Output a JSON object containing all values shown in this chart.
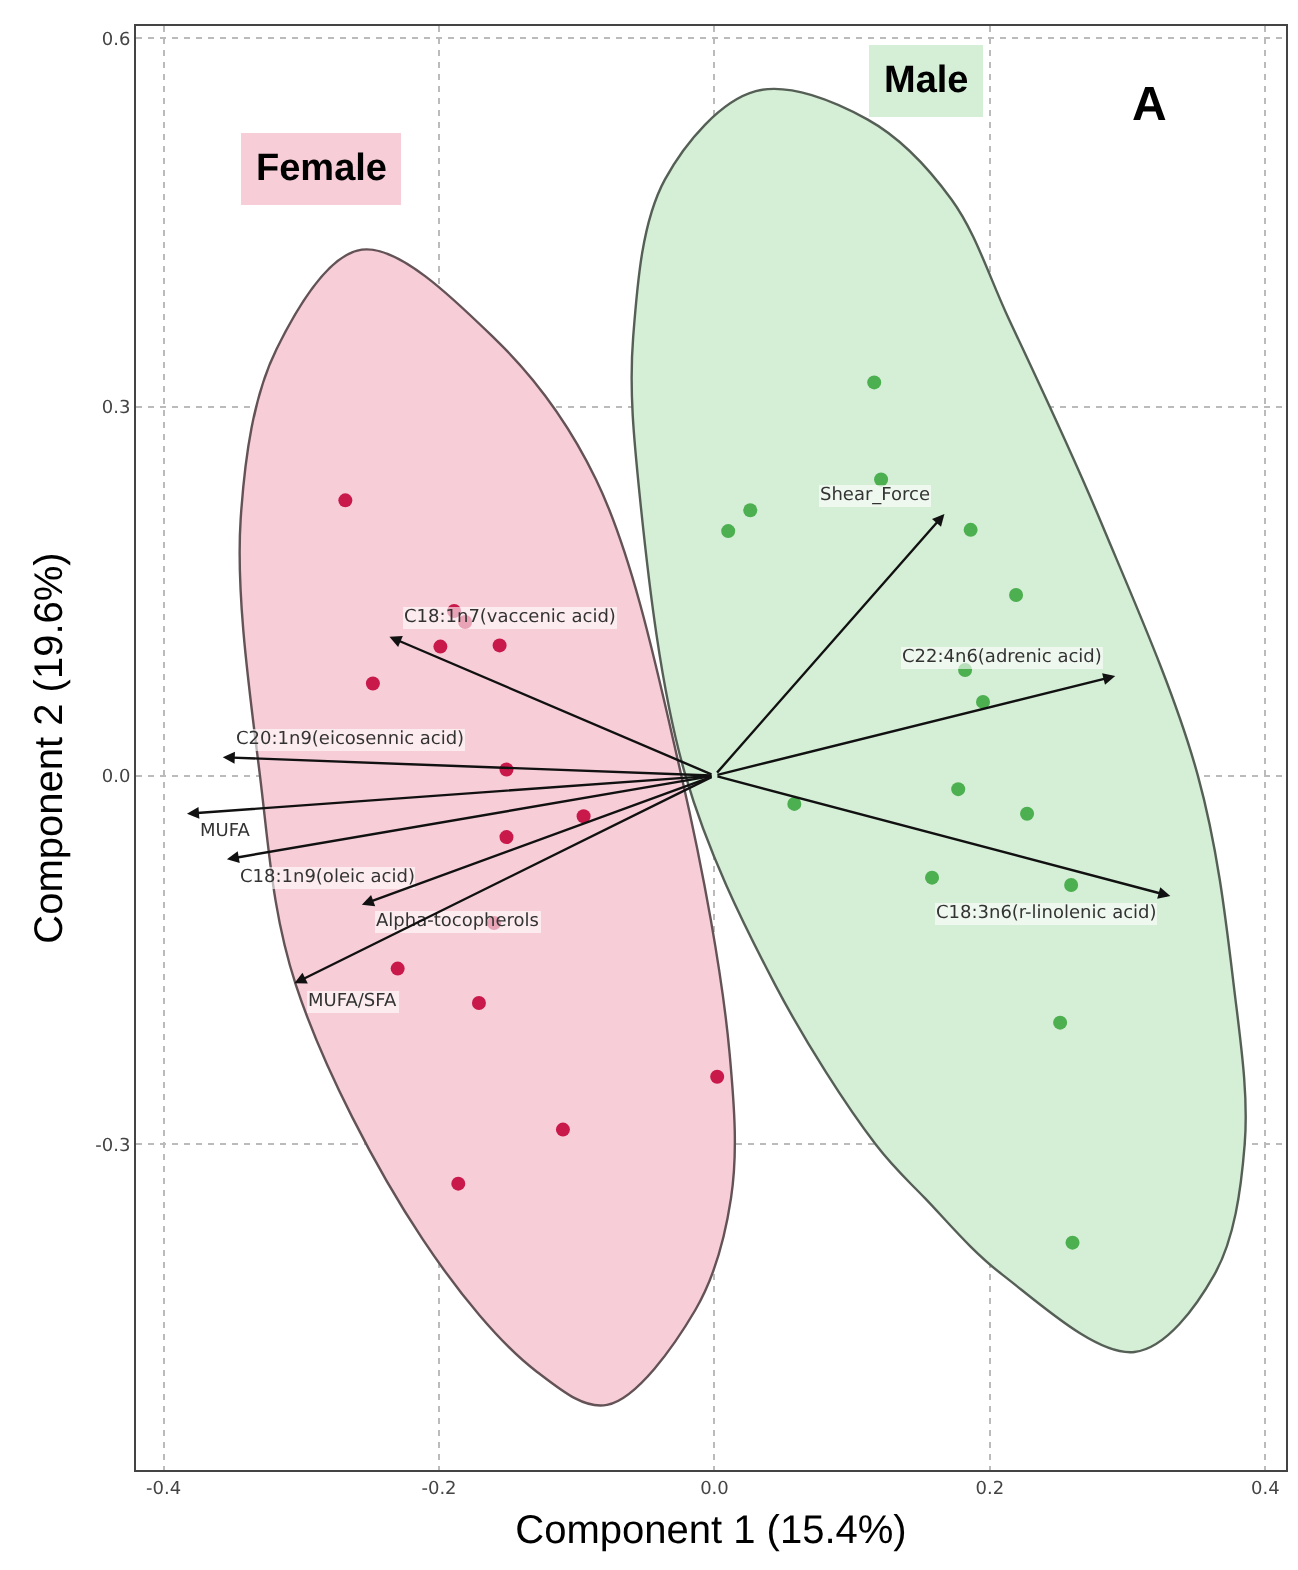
{
  "chart_data": {
    "type": "scatter",
    "xlabel": "Component 1 (15.4%)",
    "ylabel": "Component 2 (19.6%)",
    "xlim": [
      -0.42,
      0.415
    ],
    "ylim": [
      -0.565,
      0.61
    ],
    "xticks": [
      -0.4,
      -0.2,
      {
        "value": 0,
        "label": "0.0"
      },
      0.2,
      0.4
    ],
    "yticks": [
      -0.3,
      {
        "value": 0,
        "label": "0.0"
      },
      0.3,
      0.6
    ],
    "grid": true,
    "marker": "circle",
    "series": [
      {
        "type": "area",
        "name": "Female",
        "marker": "none",
        "color": "#f7cdd8",
        "x": [
          -0.256,
          -0.159,
          -0.086,
          -0.024,
          0.011,
          0.012,
          -0.014,
          -0.078,
          -0.129,
          -0.212,
          -0.304,
          -0.33,
          -0.344,
          -0.318,
          -0.256
        ],
        "values": [
          0.428,
          0.355,
          0.241,
          0.0,
          -0.226,
          -0.344,
          -0.435,
          -0.512,
          -0.485,
          -0.377,
          -0.17,
          0.0,
          0.209,
          0.347,
          0.428
        ]
      },
      {
        "type": "area",
        "name": "Male",
        "marker": "none",
        "color": "#d5eed6",
        "x": [
          0.03,
          0.111,
          0.172,
          0.214,
          0.28,
          0.351,
          0.377,
          0.385,
          0.363,
          0.305,
          0.209,
          0.153,
          0.117,
          0.044,
          -0.021,
          -0.054,
          -0.059,
          -0.036,
          0.03
        ],
        "values": [
          0.557,
          0.534,
          0.469,
          0.371,
          0.208,
          0.0,
          -0.17,
          -0.3,
          -0.406,
          -0.469,
          -0.406,
          -0.344,
          -0.3,
          -0.17,
          0.0,
          0.225,
          0.357,
          0.485,
          0.557
        ]
      },
      {
        "color": "#c8194a",
        "x": [
          -0.268,
          -0.189,
          -0.181,
          -0.199,
          -0.156,
          -0.248,
          -0.151,
          -0.095,
          -0.151,
          -0.16,
          -0.23,
          -0.171,
          0.002,
          -0.11,
          -0.186
        ],
        "values": [
          0.224,
          0.134,
          0.125,
          0.105,
          0.106,
          0.075,
          0.005,
          -0.033,
          -0.05,
          -0.12,
          -0.157,
          -0.185,
          -0.245,
          -0.288,
          -0.332
        ]
      },
      {
        "color": "#4caf50",
        "x": [
          0.116,
          0.121,
          0.026,
          0.01,
          0.186,
          0.219,
          0.182,
          0.195,
          0.177,
          0.058,
          0.227,
          0.158,
          0.259,
          0.251,
          0.26
        ],
        "values": [
          0.32,
          0.241,
          0.216,
          0.199,
          0.2,
          0.147,
          0.086,
          0.06,
          -0.011,
          -0.023,
          -0.031,
          -0.083,
          -0.089,
          -0.201,
          -0.38
        ]
      }
    ],
    "annotations": [
      "C18:1n7(vaccenic acid)",
      "C20:1n9(eicosennic acid)",
      "MUFA",
      "C18:1n9(oleic acid)",
      "Alpha-tocopherols",
      "MUFA/SFA",
      "Shear_Force",
      "C22:4n6(adrenic acid)",
      "C18:3n6(r-linolenic acid)",
      "A"
    ]
  }
}
